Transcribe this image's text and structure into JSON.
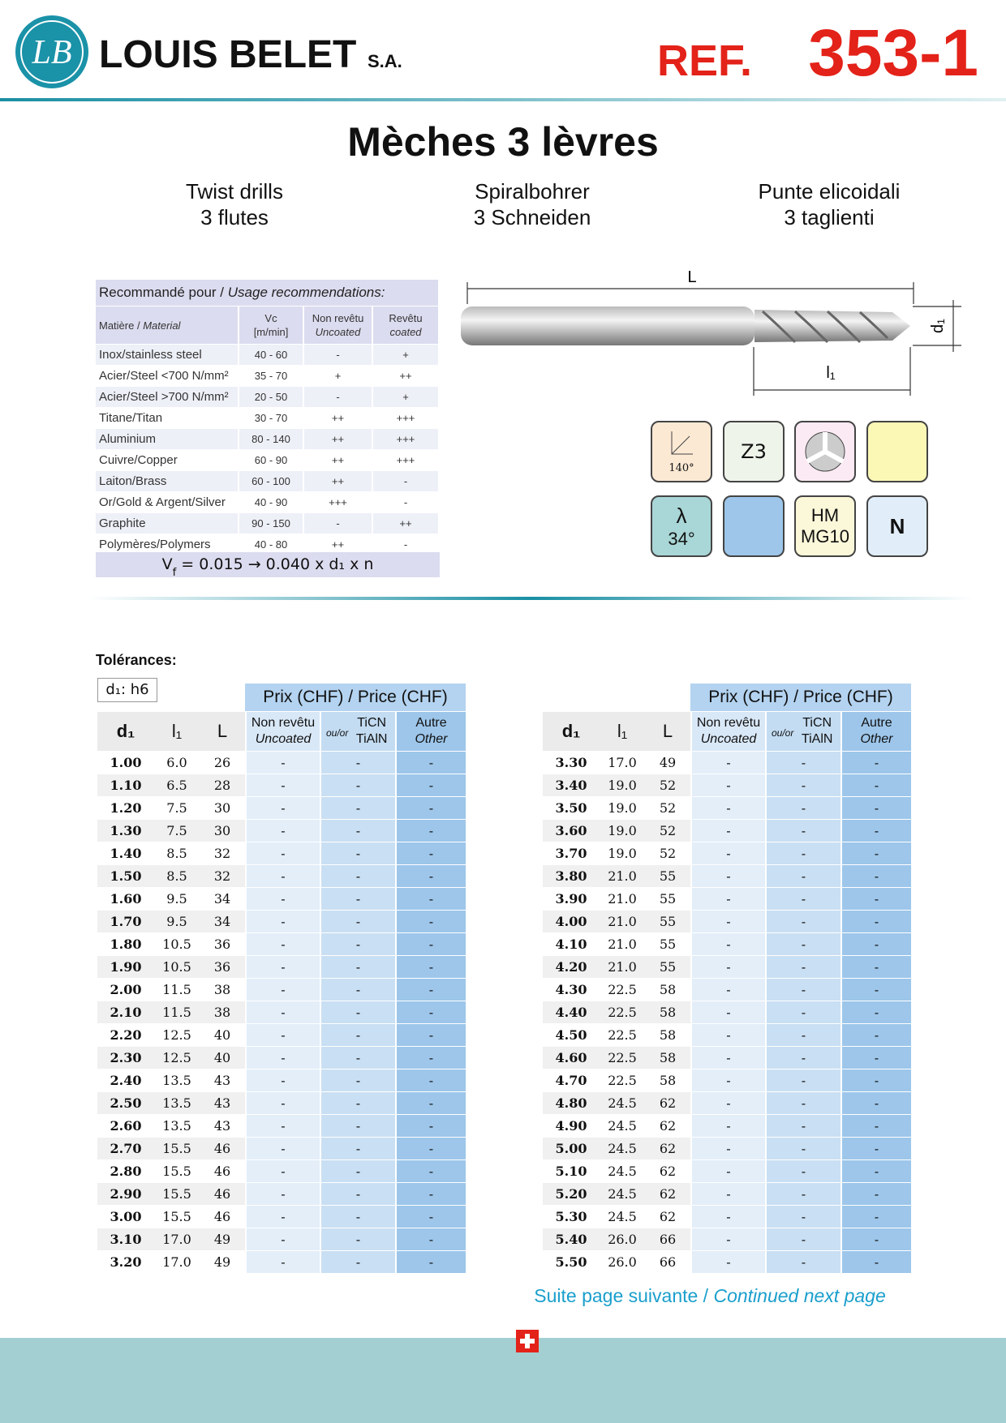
{
  "header": {
    "logo": "LB",
    "brand": "LOUIS BELET",
    "suffix": "S.A.",
    "ref_prefix": "REF.",
    "ref": "353-1"
  },
  "title": "Mèches 3 lèvres",
  "subtitles": [
    [
      "Twist drills",
      "3 flutes"
    ],
    [
      "Spiralbohrer",
      "3 Schneiden"
    ],
    [
      "Punte elicoidali",
      "3 taglienti"
    ]
  ],
  "recommendations": {
    "heading_fr": "Recommandé pour /",
    "heading_en": "Usage recommendations:",
    "columns": [
      [
        "Matière /",
        "Material"
      ],
      [
        "Vc",
        "[m/min]"
      ],
      [
        "Non revêtu",
        "Uncoated"
      ],
      [
        "Revêtu",
        "coated"
      ]
    ],
    "rows": [
      [
        "Inox/stainless steel",
        "40 - 60",
        "-",
        "+"
      ],
      [
        "Acier/Steel <700 N/mm²",
        "35 - 70",
        "+",
        "++"
      ],
      [
        "Acier/Steel >700 N/mm²",
        "20 - 50",
        "-",
        "+"
      ],
      [
        "Titane/Titan",
        "30 - 70",
        "++",
        "+++"
      ],
      [
        "Aluminium",
        "80 - 140",
        "++",
        "+++"
      ],
      [
        "Cuivre/Copper",
        "60 - 90",
        "++",
        "+++"
      ],
      [
        "Laiton/Brass",
        "60 - 100",
        "++",
        "-"
      ],
      [
        "Or/Gold & Argent/Silver",
        "40 - 90",
        "+++",
        "-"
      ],
      [
        "Graphite",
        "90 - 150",
        "-",
        "++"
      ],
      [
        "Polymères/Polymers",
        "40 - 80",
        "++",
        "-"
      ]
    ],
    "formula": [
      "V",
      "f",
      " = 0.015 → 0.040 x d₁ x n"
    ]
  },
  "drawing": {
    "length": "L",
    "flute_length": "l₁",
    "diameter": "d₁"
  },
  "icons": {
    "point_angle": "140°",
    "flutes": "Z3",
    "helix_symbol": "λ",
    "helix_angle": "34°",
    "material_1": "HM",
    "material_2": "MG10",
    "type": "N"
  },
  "tolerances": {
    "label": "Tolérances:",
    "value": "d₁: h6"
  },
  "price_table": {
    "price_heading": "Prix (CHF) / Price (CHF)",
    "columns": {
      "d": "d₁",
      "l1": "l₁",
      "L": "L",
      "uncoated_fr": "Non revêtu",
      "uncoated_en": "Uncoated",
      "or": "ou/or",
      "coated_1": "TiCN",
      "coated_2": "TiAlN",
      "other_fr": "Autre",
      "other_en": "Other"
    },
    "left": [
      [
        "1.00",
        "6.0",
        "26",
        "-",
        "-",
        "-"
      ],
      [
        "1.10",
        "6.5",
        "28",
        "-",
        "-",
        "-"
      ],
      [
        "1.20",
        "7.5",
        "30",
        "-",
        "-",
        "-"
      ],
      [
        "1.30",
        "7.5",
        "30",
        "-",
        "-",
        "-"
      ],
      [
        "1.40",
        "8.5",
        "32",
        "-",
        "-",
        "-"
      ],
      [
        "1.50",
        "8.5",
        "32",
        "-",
        "-",
        "-"
      ],
      [
        "1.60",
        "9.5",
        "34",
        "-",
        "-",
        "-"
      ],
      [
        "1.70",
        "9.5",
        "34",
        "-",
        "-",
        "-"
      ],
      [
        "1.80",
        "10.5",
        "36",
        "-",
        "-",
        "-"
      ],
      [
        "1.90",
        "10.5",
        "36",
        "-",
        "-",
        "-"
      ],
      [
        "2.00",
        "11.5",
        "38",
        "-",
        "-",
        "-"
      ],
      [
        "2.10",
        "11.5",
        "38",
        "-",
        "-",
        "-"
      ],
      [
        "2.20",
        "12.5",
        "40",
        "-",
        "-",
        "-"
      ],
      [
        "2.30",
        "12.5",
        "40",
        "-",
        "-",
        "-"
      ],
      [
        "2.40",
        "13.5",
        "43",
        "-",
        "-",
        "-"
      ],
      [
        "2.50",
        "13.5",
        "43",
        "-",
        "-",
        "-"
      ],
      [
        "2.60",
        "13.5",
        "43",
        "-",
        "-",
        "-"
      ],
      [
        "2.70",
        "15.5",
        "46",
        "-",
        "-",
        "-"
      ],
      [
        "2.80",
        "15.5",
        "46",
        "-",
        "-",
        "-"
      ],
      [
        "2.90",
        "15.5",
        "46",
        "-",
        "-",
        "-"
      ],
      [
        "3.00",
        "15.5",
        "46",
        "-",
        "-",
        "-"
      ],
      [
        "3.10",
        "17.0",
        "49",
        "-",
        "-",
        "-"
      ],
      [
        "3.20",
        "17.0",
        "49",
        "-",
        "-",
        "-"
      ]
    ],
    "right": [
      [
        "3.30",
        "17.0",
        "49",
        "-",
        "-",
        "-"
      ],
      [
        "3.40",
        "19.0",
        "52",
        "-",
        "-",
        "-"
      ],
      [
        "3.50",
        "19.0",
        "52",
        "-",
        "-",
        "-"
      ],
      [
        "3.60",
        "19.0",
        "52",
        "-",
        "-",
        "-"
      ],
      [
        "3.70",
        "19.0",
        "52",
        "-",
        "-",
        "-"
      ],
      [
        "3.80",
        "21.0",
        "55",
        "-",
        "-",
        "-"
      ],
      [
        "3.90",
        "21.0",
        "55",
        "-",
        "-",
        "-"
      ],
      [
        "4.00",
        "21.0",
        "55",
        "-",
        "-",
        "-"
      ],
      [
        "4.10",
        "21.0",
        "55",
        "-",
        "-",
        "-"
      ],
      [
        "4.20",
        "21.0",
        "55",
        "-",
        "-",
        "-"
      ],
      [
        "4.30",
        "22.5",
        "58",
        "-",
        "-",
        "-"
      ],
      [
        "4.40",
        "22.5",
        "58",
        "-",
        "-",
        "-"
      ],
      [
        "4.50",
        "22.5",
        "58",
        "-",
        "-",
        "-"
      ],
      [
        "4.60",
        "22.5",
        "58",
        "-",
        "-",
        "-"
      ],
      [
        "4.70",
        "22.5",
        "58",
        "-",
        "-",
        "-"
      ],
      [
        "4.80",
        "24.5",
        "62",
        "-",
        "-",
        "-"
      ],
      [
        "4.90",
        "24.5",
        "62",
        "-",
        "-",
        "-"
      ],
      [
        "5.00",
        "24.5",
        "62",
        "-",
        "-",
        "-"
      ],
      [
        "5.10",
        "24.5",
        "62",
        "-",
        "-",
        "-"
      ],
      [
        "5.20",
        "24.5",
        "62",
        "-",
        "-",
        "-"
      ],
      [
        "5.30",
        "24.5",
        "62",
        "-",
        "-",
        "-"
      ],
      [
        "5.40",
        "26.0",
        "66",
        "-",
        "-",
        "-"
      ],
      [
        "5.50",
        "26.0",
        "66",
        "-",
        "-",
        "-"
      ]
    ]
  },
  "footer": {
    "fr": "Suite page suivante /",
    "en": "Continued next page"
  }
}
